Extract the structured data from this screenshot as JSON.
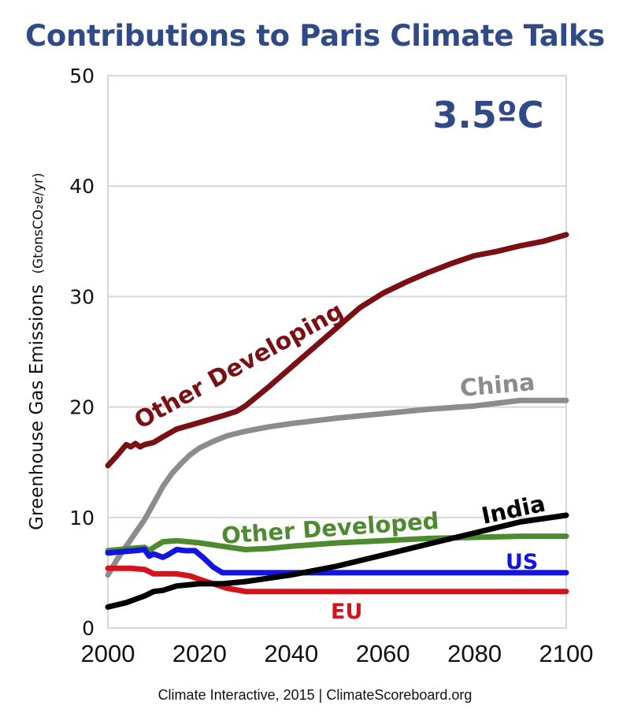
{
  "chart_data": {
    "type": "line",
    "title": "Contributions to Paris Climate Talks",
    "annotation": "3.5ºC",
    "xlabel": "",
    "ylabel": "Greenhouse Gas Emissions",
    "ylabel_unit": "(GtonsCO₂e/yr)",
    "xlim": [
      2000,
      2100
    ],
    "ylim": [
      0,
      50
    ],
    "xticks": [
      2000,
      2020,
      2040,
      2060,
      2080,
      2100
    ],
    "yticks": [
      0,
      10,
      20,
      30,
      40,
      50
    ],
    "grid": "horizontal",
    "legend": "inline-labels",
    "series": [
      {
        "name": "Other Developing",
        "color": "#7a0f14",
        "x": [
          2000,
          2002,
          2004,
          2005,
          2006,
          2007,
          2008,
          2010,
          2012,
          2015,
          2020,
          2025,
          2028,
          2030,
          2035,
          2040,
          2045,
          2050,
          2055,
          2060,
          2065,
          2070,
          2075,
          2080,
          2085,
          2090,
          2095,
          2100
        ],
        "values": [
          14.7,
          15.6,
          16.6,
          16.4,
          16.7,
          16.4,
          16.6,
          16.8,
          17.3,
          18.0,
          18.6,
          19.2,
          19.6,
          20.1,
          21.8,
          23.6,
          25.4,
          27.2,
          29.0,
          30.3,
          31.3,
          32.2,
          33.0,
          33.7,
          34.1,
          34.6,
          35.0,
          35.6
        ]
      },
      {
        "name": "China",
        "color": "#8c8c8c",
        "x": [
          2000,
          2002,
          2004,
          2006,
          2008,
          2010,
          2012,
          2014,
          2016,
          2018,
          2020,
          2023,
          2026,
          2030,
          2035,
          2040,
          2050,
          2060,
          2070,
          2080,
          2090,
          2100
        ],
        "values": [
          4.8,
          6.2,
          7.4,
          8.6,
          9.8,
          11.3,
          12.8,
          14.0,
          14.9,
          15.7,
          16.3,
          16.9,
          17.4,
          17.8,
          18.2,
          18.5,
          19.0,
          19.4,
          19.8,
          20.1,
          20.6,
          20.6
        ]
      },
      {
        "name": "Other Developed",
        "color": "#4e8a2e",
        "x": [
          2000,
          2005,
          2008,
          2009,
          2010,
          2012,
          2015,
          2020,
          2025,
          2030,
          2035,
          2040,
          2050,
          2060,
          2070,
          2080,
          2090,
          2100
        ],
        "values": [
          7.0,
          7.2,
          7.3,
          7.0,
          7.3,
          7.8,
          7.9,
          7.7,
          7.4,
          7.1,
          7.2,
          7.4,
          7.7,
          7.9,
          8.1,
          8.2,
          8.3,
          8.3
        ]
      },
      {
        "name": "US",
        "color": "#1414e0",
        "x": [
          2000,
          2003,
          2006,
          2008,
          2009,
          2010,
          2012,
          2013,
          2015,
          2017,
          2019,
          2021,
          2023,
          2025,
          2030,
          2050,
          2080,
          2100
        ],
        "values": [
          6.8,
          6.9,
          7.0,
          7.1,
          6.5,
          6.7,
          6.4,
          6.6,
          7.1,
          7.0,
          7.0,
          6.3,
          5.5,
          5.0,
          5.0,
          5.0,
          5.0,
          5.0
        ]
      },
      {
        "name": "EU",
        "color": "#d6121b",
        "x": [
          2000,
          2005,
          2008,
          2010,
          2012,
          2015,
          2018,
          2020,
          2023,
          2026,
          2030,
          2050,
          2080,
          2100
        ],
        "values": [
          5.4,
          5.4,
          5.3,
          4.9,
          4.9,
          4.9,
          4.7,
          4.4,
          4.0,
          3.6,
          3.3,
          3.3,
          3.3,
          3.3
        ]
      },
      {
        "name": "India",
        "color": "#000000",
        "x": [
          2000,
          2004,
          2008,
          2010,
          2012,
          2015,
          2020,
          2025,
          2030,
          2040,
          2050,
          2060,
          2070,
          2080,
          2090,
          2100
        ],
        "values": [
          1.9,
          2.3,
          2.9,
          3.3,
          3.4,
          3.8,
          4.0,
          4.0,
          4.2,
          4.8,
          5.6,
          6.6,
          7.6,
          8.6,
          9.6,
          10.2
        ]
      }
    ]
  },
  "labels": {
    "other_developing": "Other Developing",
    "china": "China",
    "other_developed": "Other Developed",
    "india": "India",
    "us": "US",
    "eu": "EU"
  },
  "footer": "Climate Interactive, 2015 | ClimateScoreboard.org"
}
